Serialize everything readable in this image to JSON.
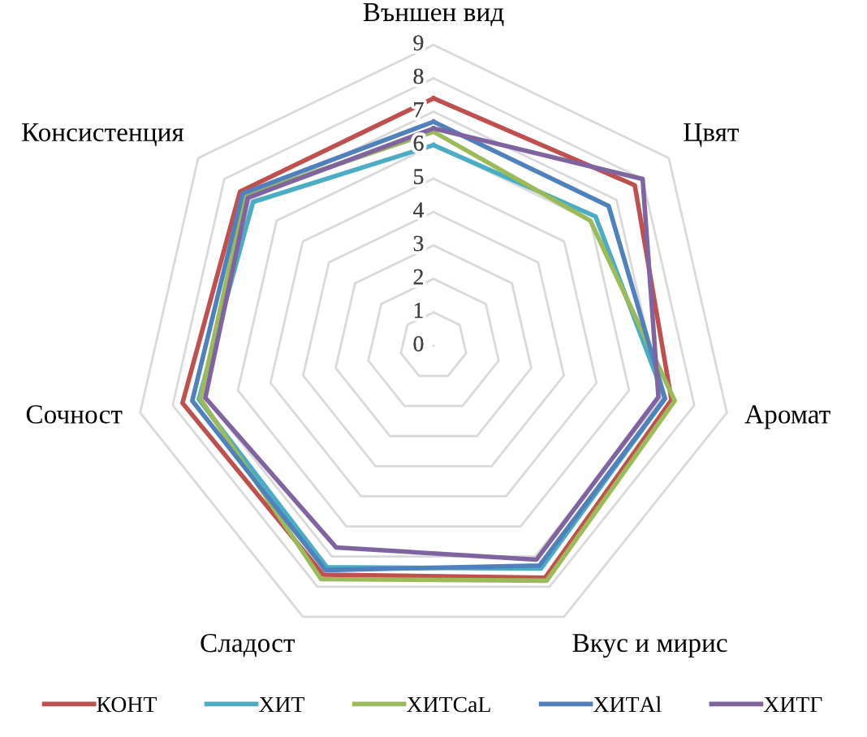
{
  "chart_data": {
    "type": "radar",
    "categories": [
      "Външен вид",
      "Цвят",
      "Аромат",
      "Вкус и мирис",
      "Сладост",
      "Сочност",
      "Консистенция"
    ],
    "ylim": [
      0,
      9
    ],
    "yticks": [
      0,
      1,
      2,
      3,
      4,
      5,
      6,
      7,
      8,
      9
    ],
    "grid": true,
    "legend": "bottom",
    "marker": "none",
    "line_style": "solid",
    "series": [
      {
        "name": "КОНТ",
        "color": "#c0504d",
        "values": [
          7.4,
          7.7,
          7.3,
          7.7,
          7.6,
          7.7,
          7.4
        ]
      },
      {
        "name": "ХИТ",
        "color": "#4bacc6",
        "values": [
          6.0,
          6.2,
          7.1,
          7.4,
          7.35,
          7.2,
          6.9
        ]
      },
      {
        "name": "ХИТCaL",
        "color": "#9bbb59",
        "values": [
          6.4,
          6.0,
          7.4,
          7.8,
          7.75,
          7.15,
          7.2
        ]
      },
      {
        "name": "ХИТAl",
        "color": "#4f81bd",
        "values": [
          6.7,
          6.7,
          7.1,
          7.3,
          7.45,
          7.4,
          7.3
        ]
      },
      {
        "name": "ХИТГ",
        "color": "#8064a2",
        "values": [
          6.5,
          8.0,
          6.9,
          7.1,
          6.7,
          7.0,
          7.1
        ]
      }
    ]
  }
}
